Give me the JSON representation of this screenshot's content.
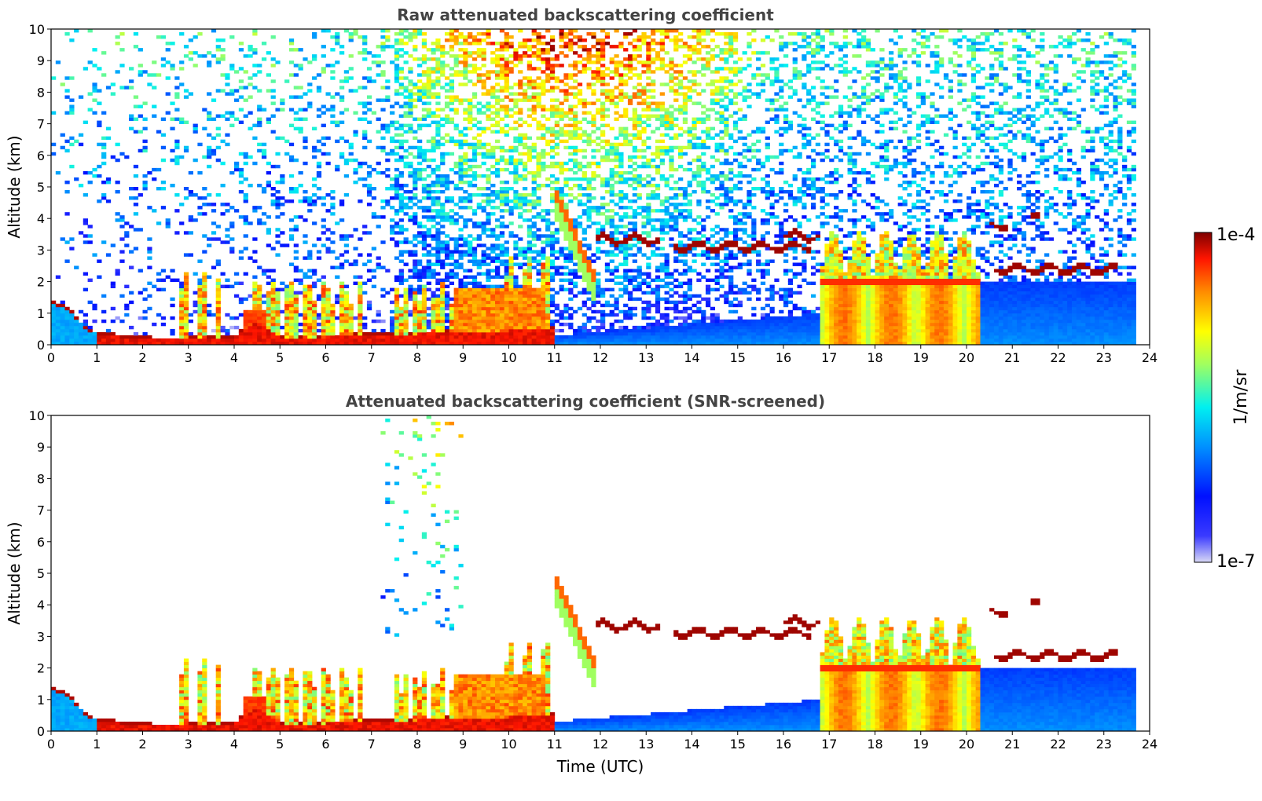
{
  "chart_data": [
    {
      "type": "heatmap",
      "title": "Raw attenuated backscattering coefficient",
      "xlabel": "",
      "ylabel": "Altitude (km)",
      "xlim": [
        0,
        24
      ],
      "ylim": [
        0,
        10
      ],
      "xticks": [
        "0",
        "1",
        "2",
        "3",
        "4",
        "5",
        "6",
        "7",
        "8",
        "9",
        "10",
        "11",
        "12",
        "13",
        "14",
        "15",
        "16",
        "17",
        "18",
        "19",
        "20",
        "21",
        "22",
        "23",
        "24"
      ],
      "yticks": [
        "0",
        "1",
        "2",
        "3",
        "4",
        "5",
        "6",
        "7",
        "8",
        "9",
        "10"
      ],
      "data_end_time": 23.75,
      "features": [
        {
          "kind": "boundary_layer",
          "time": [
            0,
            11
          ],
          "top_km": [
            1.3,
            0.35,
            0.15,
            0.15,
            0.2,
            0.25,
            0.3,
            0.35,
            0.4,
            0.5,
            0.5
          ]
        },
        {
          "kind": "cloud_layer",
          "time": [
            11.9,
            13.3
          ],
          "altitude_km": 3.35
        },
        {
          "kind": "cloud_layer",
          "time": [
            13.6,
            16.6
          ],
          "altitude_km": 3.1
        },
        {
          "kind": "cloud_layer",
          "time": [
            20.6,
            23.3
          ],
          "altitude_km": 2.4
        },
        {
          "kind": "convective_cells",
          "time": [
            16.8,
            20.3
          ],
          "top_km": 2.0
        }
      ]
    },
    {
      "type": "heatmap",
      "title": "Attenuated backscattering coefficient (SNR-screened)",
      "xlabel": "Time (UTC)",
      "ylabel": "Altitude (km)",
      "xlim": [
        0,
        24
      ],
      "ylim": [
        0,
        10
      ],
      "xticks": [
        "0",
        "1",
        "2",
        "3",
        "4",
        "5",
        "6",
        "7",
        "8",
        "9",
        "10",
        "11",
        "12",
        "13",
        "14",
        "15",
        "16",
        "17",
        "18",
        "19",
        "20",
        "21",
        "22",
        "23",
        "24"
      ],
      "yticks": [
        "0",
        "1",
        "2",
        "3",
        "4",
        "5",
        "6",
        "7",
        "8",
        "9",
        "10"
      ],
      "data_end_time": 23.75,
      "screened": true
    }
  ],
  "colorbar": {
    "max_label": "1e-4",
    "min_label": "1e-7",
    "unit_label": "1/m/sr",
    "colormap": [
      "#7f0000",
      "#ff0000",
      "#ff7f00",
      "#ffff00",
      "#7fff7f",
      "#00ffff",
      "#007fff",
      "#0000ff",
      "#00007f"
    ]
  }
}
